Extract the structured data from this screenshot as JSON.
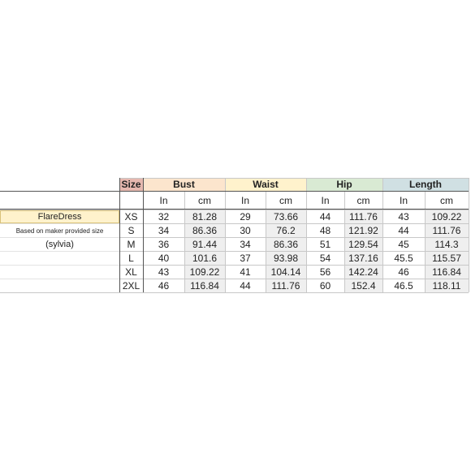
{
  "colors": {
    "size": "#e6b8af",
    "bust": "#fce5cd",
    "waist": "#fff2cc",
    "hip": "#d9ead3",
    "length": "#d0e0e3",
    "product": "#fff2cc",
    "cm_shade": "#efefef"
  },
  "header": {
    "size": "Size",
    "bust": "Bust",
    "waist": "Waist",
    "hip": "Hip",
    "length": "Length"
  },
  "units": {
    "in": "In",
    "cm": "cm"
  },
  "product": {
    "name": "FlareDress",
    "note": "Based on maker provided size",
    "model": "(sylvia)"
  },
  "rows": [
    {
      "size": "XS",
      "bust_in": "32",
      "bust_cm": "81.28",
      "waist_in": "29",
      "waist_cm": "73.66",
      "hip_in": "44",
      "hip_cm": "111.76",
      "length_in": "43",
      "length_cm": "109.22"
    },
    {
      "size": "S",
      "bust_in": "34",
      "bust_cm": "86.36",
      "waist_in": "30",
      "waist_cm": "76.2",
      "hip_in": "48",
      "hip_cm": "121.92",
      "length_in": "44",
      "length_cm": "111.76"
    },
    {
      "size": "M",
      "bust_in": "36",
      "bust_cm": "91.44",
      "waist_in": "34",
      "waist_cm": "86.36",
      "hip_in": "51",
      "hip_cm": "129.54",
      "length_in": "45",
      "length_cm": "114.3"
    },
    {
      "size": "L",
      "bust_in": "40",
      "bust_cm": "101.6",
      "waist_in": "37",
      "waist_cm": "93.98",
      "hip_in": "54",
      "hip_cm": "137.16",
      "length_in": "45.5",
      "length_cm": "115.57"
    },
    {
      "size": "XL",
      "bust_in": "43",
      "bust_cm": "109.22",
      "waist_in": "41",
      "waist_cm": "104.14",
      "hip_in": "56",
      "hip_cm": "142.24",
      "length_in": "46",
      "length_cm": "116.84"
    },
    {
      "size": "2XL",
      "bust_in": "46",
      "bust_cm": "116.84",
      "waist_in": "44",
      "waist_cm": "111.76",
      "hip_in": "60",
      "hip_cm": "152.4",
      "length_in": "46.5",
      "length_cm": "118.11"
    }
  ]
}
